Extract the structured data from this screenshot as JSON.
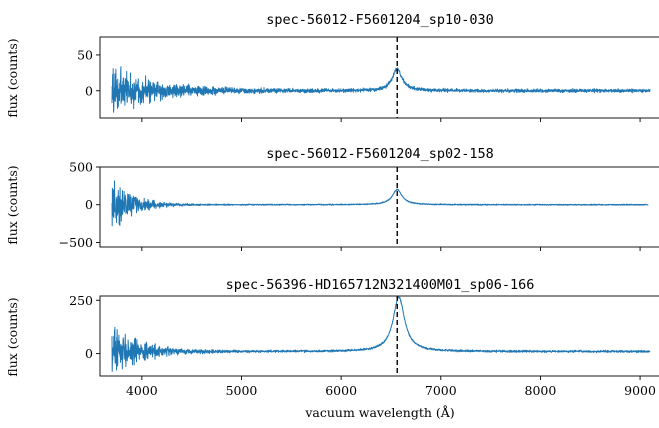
{
  "chart_data": {
    "type": "line",
    "xlabel": "vacuum wavelength (Å)",
    "xlim": [
      3580,
      9200
    ],
    "xticks": [
      4000,
      5000,
      6000,
      7000,
      8000,
      9000
    ],
    "marker_x": 6563,
    "series_color": "#1f77b4",
    "marker_color": "#000000",
    "panels": [
      {
        "title": "spec-56012-F5601204_sp10-030",
        "ylabel": "flux (counts)",
        "ylim": [
          -38,
          75
        ],
        "yticks": [
          0,
          50
        ],
        "x_range": [
          3700,
          9100
        ],
        "peak_x": 6563,
        "peak_y": 30,
        "peak_width": 60,
        "noise_start": 30,
        "noise_end": 2,
        "noise_decay": 420,
        "baseline": 0
      },
      {
        "title": "spec-56012-F5601204_sp02-158",
        "ylabel": "flux (counts)",
        "ylim": [
          -560,
          500
        ],
        "yticks": [
          -500,
          0,
          500
        ],
        "x_range": [
          3700,
          9080
        ],
        "peak_x": 6563,
        "peak_y": 200,
        "peak_width": 60,
        "noise_start": 300,
        "noise_end": 6,
        "noise_decay": 200,
        "baseline": 0
      },
      {
        "title": "spec-56396-HD165712N321400M01_sp06-166",
        "ylabel": "flux (counts)",
        "ylim": [
          -105,
          270
        ],
        "yticks": [
          0,
          250
        ],
        "x_range": [
          3700,
          9100
        ],
        "peak_x": 6580,
        "peak_y": 255,
        "peak_width": 70,
        "noise_start": 100,
        "noise_end": 4,
        "noise_decay": 280,
        "baseline": 10
      }
    ]
  }
}
